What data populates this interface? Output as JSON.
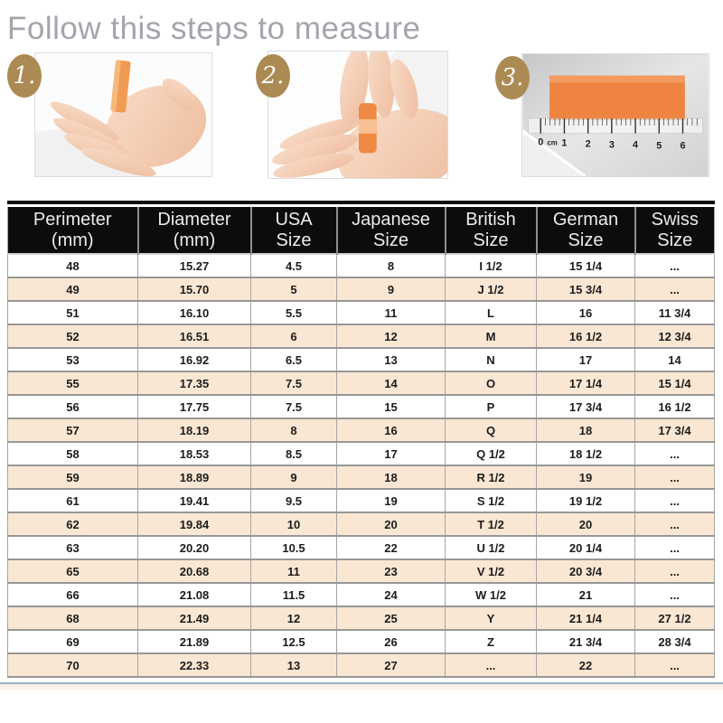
{
  "page": {
    "title": "Follow this steps to measure"
  },
  "steps": [
    {
      "number": "1."
    },
    {
      "number": "2."
    },
    {
      "number": "3.",
      "ruler_labels": [
        "0",
        "cm",
        "1",
        "2",
        "3",
        "4",
        "5",
        "6"
      ]
    }
  ],
  "colors": {
    "badge_gold": "#ac8a53",
    "row_stripe_peach": "#fae7d3",
    "header_black": "#0c0c0c",
    "tape_orange": "#ee8a45",
    "footer_line_blue": "#9fb6c6"
  },
  "table": {
    "headers": [
      {
        "line1": "Perimeter",
        "line2": "(mm)"
      },
      {
        "line1": "Diameter",
        "line2": "(mm)"
      },
      {
        "line1": "USA",
        "line2": "Size"
      },
      {
        "line1": "Japanese",
        "line2": "Size"
      },
      {
        "line1": "British",
        "line2": "Size"
      },
      {
        "line1": "German",
        "line2": "Size"
      },
      {
        "line1": "Swiss",
        "line2": "Size"
      }
    ],
    "rows": [
      [
        "48",
        "15.27",
        "4.5",
        "8",
        "I 1/2",
        "15 1/4",
        "..."
      ],
      [
        "49",
        "15.70",
        "5",
        "9",
        "J 1/2",
        "15 3/4",
        "..."
      ],
      [
        "51",
        "16.10",
        "5.5",
        "11",
        "L",
        "16",
        "11 3/4"
      ],
      [
        "52",
        "16.51",
        "6",
        "12",
        "M",
        "16 1/2",
        "12 3/4"
      ],
      [
        "53",
        "16.92",
        "6.5",
        "13",
        "N",
        "17",
        "14"
      ],
      [
        "55",
        "17.35",
        "7.5",
        "14",
        "O",
        "17 1/4",
        "15 1/4"
      ],
      [
        "56",
        "17.75",
        "7.5",
        "15",
        "P",
        "17 3/4",
        "16 1/2"
      ],
      [
        "57",
        "18.19",
        "8",
        "16",
        "Q",
        "18",
        "17 3/4"
      ],
      [
        "58",
        "18.53",
        "8.5",
        "17",
        "Q 1/2",
        "18 1/2",
        "..."
      ],
      [
        "59",
        "18.89",
        "9",
        "18",
        "R 1/2",
        "19",
        "..."
      ],
      [
        "61",
        "19.41",
        "9.5",
        "19",
        "S 1/2",
        "19 1/2",
        "..."
      ],
      [
        "62",
        "19.84",
        "10",
        "20",
        "T 1/2",
        "20",
        "..."
      ],
      [
        "63",
        "20.20",
        "10.5",
        "22",
        "U 1/2",
        "20 1/4",
        "..."
      ],
      [
        "65",
        "20.68",
        "11",
        "23",
        "V 1/2",
        "20 3/4",
        "..."
      ],
      [
        "66",
        "21.08",
        "11.5",
        "24",
        "W 1/2",
        "21",
        "..."
      ],
      [
        "68",
        "21.49",
        "12",
        "25",
        "Y",
        "21 1/4",
        "27 1/2"
      ],
      [
        "69",
        "21.89",
        "12.5",
        "26",
        "Z",
        "21 3/4",
        "28 3/4"
      ],
      [
        "70",
        "22.33",
        "13",
        "27",
        "...",
        "22",
        "..."
      ]
    ]
  }
}
